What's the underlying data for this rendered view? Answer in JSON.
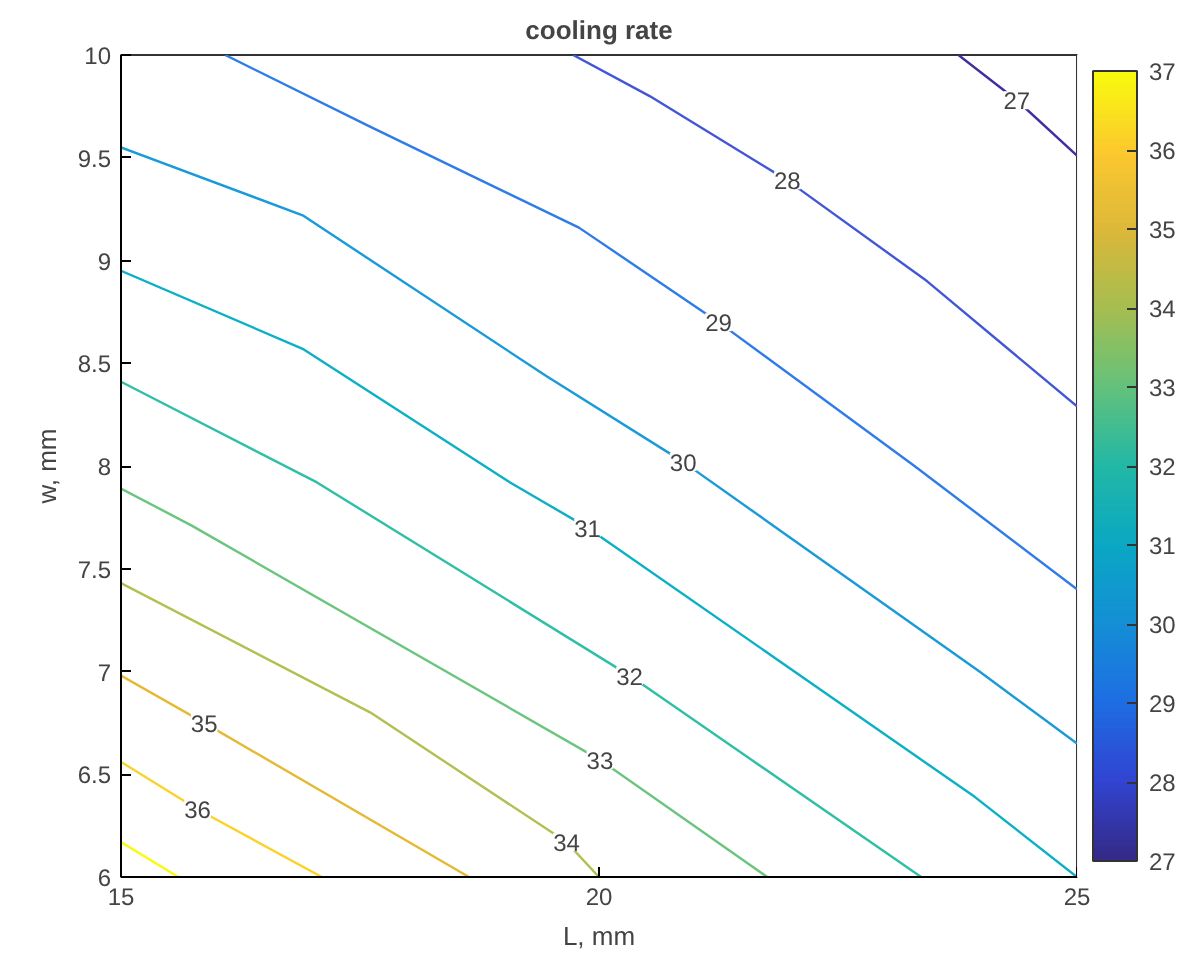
{
  "chart_data": {
    "type": "line",
    "title": "cooling rate",
    "xlabel": "L, mm",
    "ylabel": "w, mm",
    "xlim": [
      15,
      25
    ],
    "ylim": [
      6,
      10
    ],
    "xticks": [
      15,
      20,
      25
    ],
    "yticks": [
      6,
      6.5,
      7,
      7.5,
      8,
      8.5,
      9,
      9.5,
      10
    ],
    "grid": false,
    "line_style": "solid",
    "clim": [
      27,
      37
    ],
    "cticks": [
      27,
      28,
      29,
      30,
      31,
      32,
      33,
      34,
      35,
      36,
      37
    ],
    "series": [
      {
        "name": "27",
        "color": "#3d2fa0",
        "x": [
          23.76,
          24.37,
          25
        ],
        "values": [
          10,
          9.78,
          9.51
        ]
      },
      {
        "name": "28",
        "color": "#4357d6",
        "x": [
          19.73,
          20.53,
          21.97,
          23.43,
          25
        ],
        "values": [
          10,
          9.8,
          9.39,
          8.9,
          8.29
        ]
      },
      {
        "name": "29",
        "color": "#2f7be8",
        "x": [
          16.09,
          17.61,
          19.79,
          21.25,
          23.3,
          25
        ],
        "values": [
          10,
          9.65,
          9.16,
          8.7,
          8.0,
          7.4
        ]
      },
      {
        "name": "30",
        "color": "#1a9ad8",
        "x": [
          15,
          16.9,
          19.44,
          20.88,
          23.98,
          25
        ],
        "values": [
          9.55,
          9.22,
          8.44,
          8.02,
          7.0,
          6.65
        ]
      },
      {
        "name": "31",
        "color": "#0bb0c4",
        "x": [
          15,
          16.9,
          19.07,
          19.88,
          23.93,
          25
        ],
        "values": [
          8.95,
          8.57,
          7.92,
          7.7,
          6.39,
          6.0
        ]
      },
      {
        "name": "32",
        "color": "#2ebfa6",
        "x": [
          15,
          17.05,
          20.32,
          23.37
        ],
        "values": [
          8.41,
          7.92,
          6.98,
          6.0
        ]
      },
      {
        "name": "33",
        "color": "#6cc57e",
        "x": [
          15,
          15.74,
          20.01,
          21.76
        ],
        "values": [
          7.89,
          7.71,
          6.57,
          6.0
        ]
      },
      {
        "name": "34",
        "color": "#b4bf51",
        "x": [
          15,
          17.61,
          19.66,
          20.0
        ],
        "values": [
          7.43,
          6.8,
          6.17,
          6.0
        ]
      },
      {
        "name": "35",
        "color": "#e6b935",
        "x": [
          15,
          15.87,
          18.64
        ],
        "values": [
          6.98,
          6.75,
          6.0
        ]
      },
      {
        "name": "36",
        "color": "#fbd328",
        "x": [
          15,
          15.8,
          17.1
        ],
        "values": [
          6.56,
          6.33,
          6.0
        ]
      },
      {
        "color": "#f9fb0e",
        "x": [
          15,
          15.6
        ],
        "values": [
          6.17,
          6.0
        ]
      }
    ]
  }
}
